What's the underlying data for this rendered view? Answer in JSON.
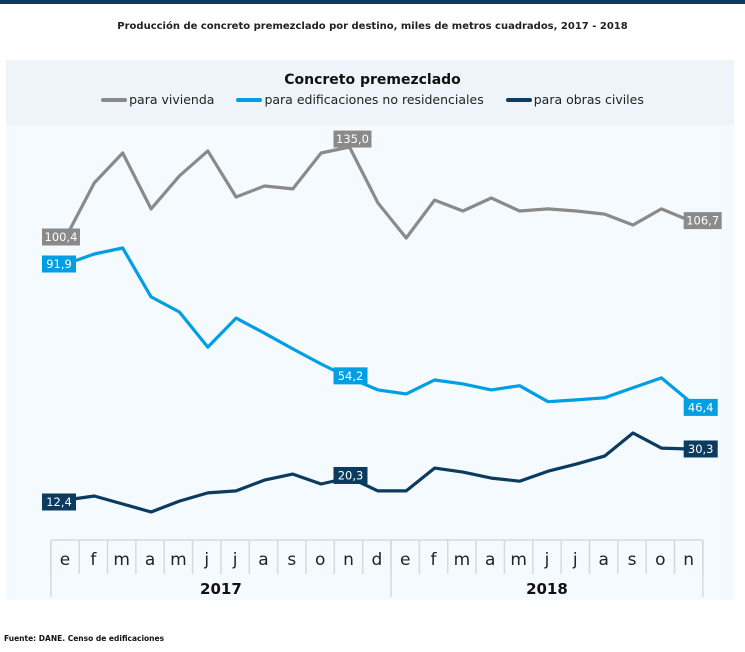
{
  "header": {
    "title": "Producción de concreto premezclado por destino, miles de metros cuadrados,  2017 - 2018"
  },
  "footer": {
    "source": "Fuente: DANE. Censo de edificaciones"
  },
  "chart_data": {
    "type": "line",
    "title": "Concreto premezclado",
    "xlabel": "",
    "ylabel": "",
    "grid": false,
    "legend_position": "top-center",
    "categories": [
      "e",
      "f",
      "m",
      "a",
      "m",
      "j",
      "j",
      "a",
      "s",
      "o",
      "n",
      "d",
      "e",
      "f",
      "m",
      "a",
      "m",
      "j",
      "j",
      "a",
      "s",
      "o",
      "n"
    ],
    "year_groups": [
      {
        "label": "2017",
        "count": 12
      },
      {
        "label": "2018",
        "count": 11
      }
    ],
    "series": [
      {
        "name": "para vivienda",
        "color": "#8a8a8a",
        "values": [
          100.4,
          121.2,
          132.7,
          111.2,
          123.9,
          133.5,
          115.8,
          120.0,
          118.9,
          132.7,
          135.0,
          113.5,
          100.0,
          114.6,
          110.4,
          115.4,
          110.4,
          111.2,
          110.4,
          109.2,
          105.0,
          111.2,
          106.7
        ],
        "labels": [
          {
            "index": 0,
            "text": "100,4"
          },
          {
            "index": 10,
            "text": "135,0"
          },
          {
            "index": 22,
            "text": "106,7"
          }
        ]
      },
      {
        "name": "para edificaciones no residenciales",
        "color": "#009fe3",
        "values": [
          91.9,
          95.2,
          97.2,
          81.0,
          76.0,
          64.4,
          74.0,
          69.0,
          63.8,
          58.8,
          54.2,
          50.2,
          48.9,
          53.5,
          52.2,
          50.2,
          51.6,
          46.3,
          46.9,
          47.6,
          50.9,
          54.2,
          46.4
        ],
        "labels": [
          {
            "index": 0,
            "text": "91,9"
          },
          {
            "index": 10,
            "text": "54,2"
          },
          {
            "index": 22,
            "text": "46,4"
          }
        ]
      },
      {
        "name": "para obras civiles",
        "color": "#0b3b5e",
        "values": [
          12.4,
          13.8,
          11.0,
          8.2,
          12.0,
          14.9,
          15.6,
          19.4,
          21.5,
          18.0,
          20.3,
          15.6,
          15.6,
          23.6,
          22.2,
          20.1,
          19.0,
          22.5,
          25.0,
          27.8,
          35.9,
          30.6,
          30.3
        ],
        "labels": [
          {
            "index": 0,
            "text": "12,4"
          },
          {
            "index": 10,
            "text": "20,3"
          },
          {
            "index": 22,
            "text": "30,3"
          }
        ]
      }
    ]
  }
}
